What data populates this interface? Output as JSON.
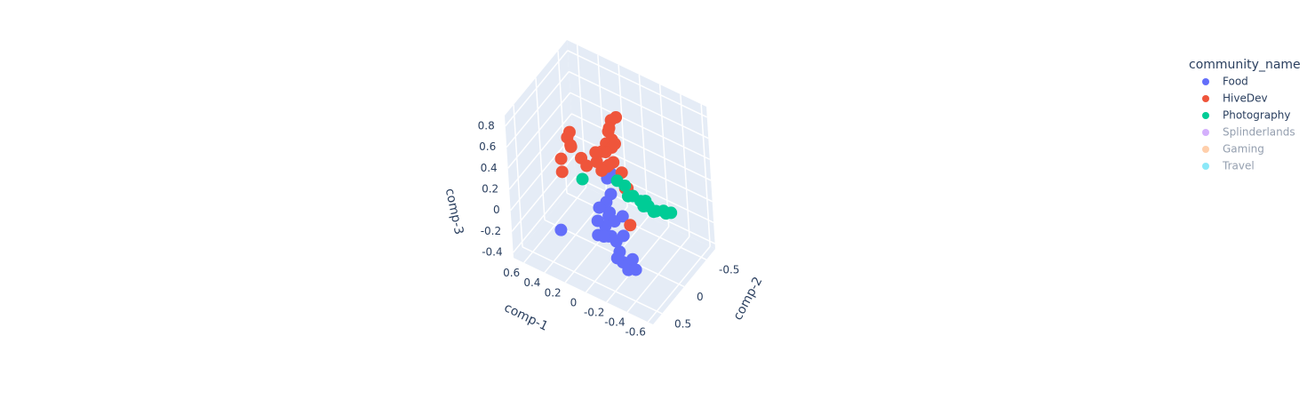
{
  "chart_data": {
    "type": "scatter3d",
    "xlabel": "comp-1",
    "ylabel": "comp-2",
    "zlabel": "comp-3",
    "xlim": [
      -0.65,
      0.7
    ],
    "ylim": [
      -0.7,
      0.7
    ],
    "zlim": [
      -0.45,
      0.9
    ],
    "xticks": [
      -0.6,
      -0.4,
      -0.2,
      0,
      0.2,
      0.4,
      0.6
    ],
    "yticks": [
      -0.5,
      0,
      0.5
    ],
    "zticks": [
      -0.4,
      -0.2,
      0,
      0.2,
      0.4,
      0.6,
      0.8
    ],
    "grid": true,
    "legend_title": "community_name",
    "legend": "top-right",
    "series": [
      {
        "name": "Food",
        "color": "#636efa",
        "x": [
          0,
          0.05,
          0,
          0.02,
          -0.02,
          0.05,
          0,
          -0.05,
          -0.1,
          -0.15,
          -0.2,
          0.1,
          0.08,
          -0.05,
          -0.1,
          -0.2,
          0.05,
          0.02,
          0.1,
          -0.12,
          0.4,
          -0.25,
          0,
          -0.08
        ],
        "y": [
          0.05,
          0.05,
          0.1,
          0.08,
          0.05,
          0.1,
          0.15,
          0.1,
          0.15,
          0.2,
          0.2,
          0.15,
          0.2,
          0.2,
          0.05,
          0.1,
          0,
          -0.02,
          0.1,
          0.25,
          0.3,
          0.15,
          0.25,
          0
        ],
        "z": [
          0.15,
          0.05,
          0,
          -0.05,
          -0.1,
          -0.15,
          -0.2,
          -0.25,
          -0.3,
          -0.35,
          -0.4,
          -0.1,
          -0.2,
          -0.15,
          -0.2,
          -0.35,
          0.25,
          0.3,
          0,
          -0.3,
          -0.25,
          -0.4,
          -0.15,
          -0.05
        ]
      },
      {
        "name": "HiveDev",
        "color": "#EF553B",
        "x": [
          -0.05,
          0,
          0,
          0.02,
          -0.02,
          0.03,
          0,
          0.05,
          -0.03,
          0.02,
          0.05,
          0.08,
          0.1,
          -0.05,
          0.12,
          0,
          0.15,
          -0.1,
          0.35,
          0.4,
          0.32,
          0.3,
          0.45,
          0.4,
          0.25,
          0.2,
          -0.15,
          -0.05
        ],
        "y": [
          -0.05,
          -0.05,
          0,
          -0.02,
          0,
          0.02,
          -0.03,
          0,
          0.02,
          0.05,
          -0.05,
          0.02,
          0,
          -0.1,
          0.05,
          -0.1,
          0,
          -0.05,
          0.1,
          0.05,
          0.15,
          0.2,
          0.1,
          0.2,
          0.1,
          0.1,
          0,
          -0.2
        ],
        "z": [
          0.85,
          0.8,
          0.75,
          0.7,
          0.65,
          0.6,
          0.55,
          0.5,
          0.45,
          0.4,
          0.35,
          0.5,
          0.3,
          0.3,
          0.4,
          0.55,
          0.45,
          0.2,
          0.6,
          0.5,
          0.5,
          0.55,
          0.3,
          0.25,
          0.4,
          0.35,
          -0.1,
          0.1
        ]
      },
      {
        "name": "Photography",
        "color": "#00cc96",
        "x": [
          -0.1,
          -0.15,
          -0.2,
          -0.25,
          -0.3,
          -0.3,
          -0.35,
          -0.1,
          -0.05,
          -0.2,
          -0.15,
          -0.25,
          0,
          0.25
        ],
        "y": [
          -0.2,
          -0.25,
          -0.3,
          -0.35,
          -0.4,
          -0.45,
          -0.45,
          -0.1,
          -0.15,
          -0.2,
          -0.35,
          -0.3,
          -0.1,
          0.1
        ],
        "z": [
          0.05,
          0,
          -0.05,
          -0.1,
          -0.1,
          -0.15,
          -0.12,
          0.1,
          0.15,
          0,
          -0.05,
          -0.08,
          0.2,
          0.2
        ]
      },
      {
        "name": "Splinderlands",
        "color": "#ab63fa",
        "visible": "legendonly"
      },
      {
        "name": "Gaming",
        "color": "#FFA15A",
        "visible": "legendonly"
      },
      {
        "name": "Travel",
        "color": "#19d3f3",
        "visible": "legendonly"
      }
    ]
  }
}
